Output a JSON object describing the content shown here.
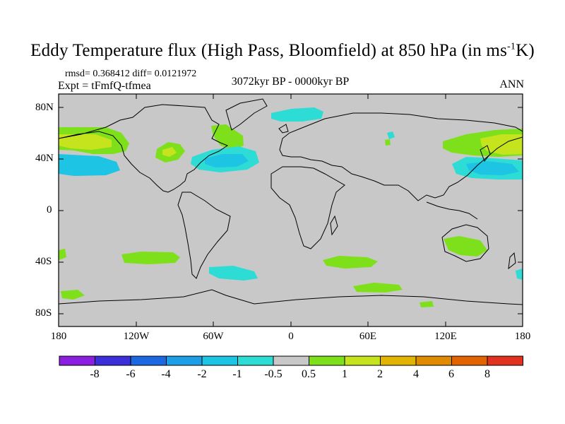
{
  "title_main": "Eddy Temperature flux (High Pass, Bloomfield) at 850 hPa (in ms",
  "title_sup": "-1",
  "title_tail": "K)",
  "stats": "rmsd= 0.368412 diff= 0.0121972",
  "expt": "Expt = tFmfQ-tfmea",
  "period": "3072kyr BP - 0000kyr BP",
  "season": "ANN",
  "lat_labels": [
    "80N",
    "40N",
    "0",
    "40S",
    "80S"
  ],
  "lon_labels": [
    "180",
    "120W",
    "60W",
    "0",
    "60E",
    "120E",
    "180"
  ],
  "colorbar": {
    "labels": [
      "-8",
      "-6",
      "-4",
      "-2",
      "-1",
      "-0.5",
      "0.5",
      "1",
      "2",
      "4",
      "6",
      "8"
    ],
    "colors": [
      "#8a1fe0",
      "#3a2fd8",
      "#1c68e0",
      "#1e9ee6",
      "#1ec4e4",
      "#2edcd6",
      "#c8c8c8",
      "#7ee01a",
      "#c6e41e",
      "#e0b400",
      "#e08a00",
      "#e06400",
      "#e0321e"
    ]
  },
  "map_colors": {
    "land_fill": "#c8c8c8",
    "coast": "#000000",
    "frame": "#000000"
  }
}
